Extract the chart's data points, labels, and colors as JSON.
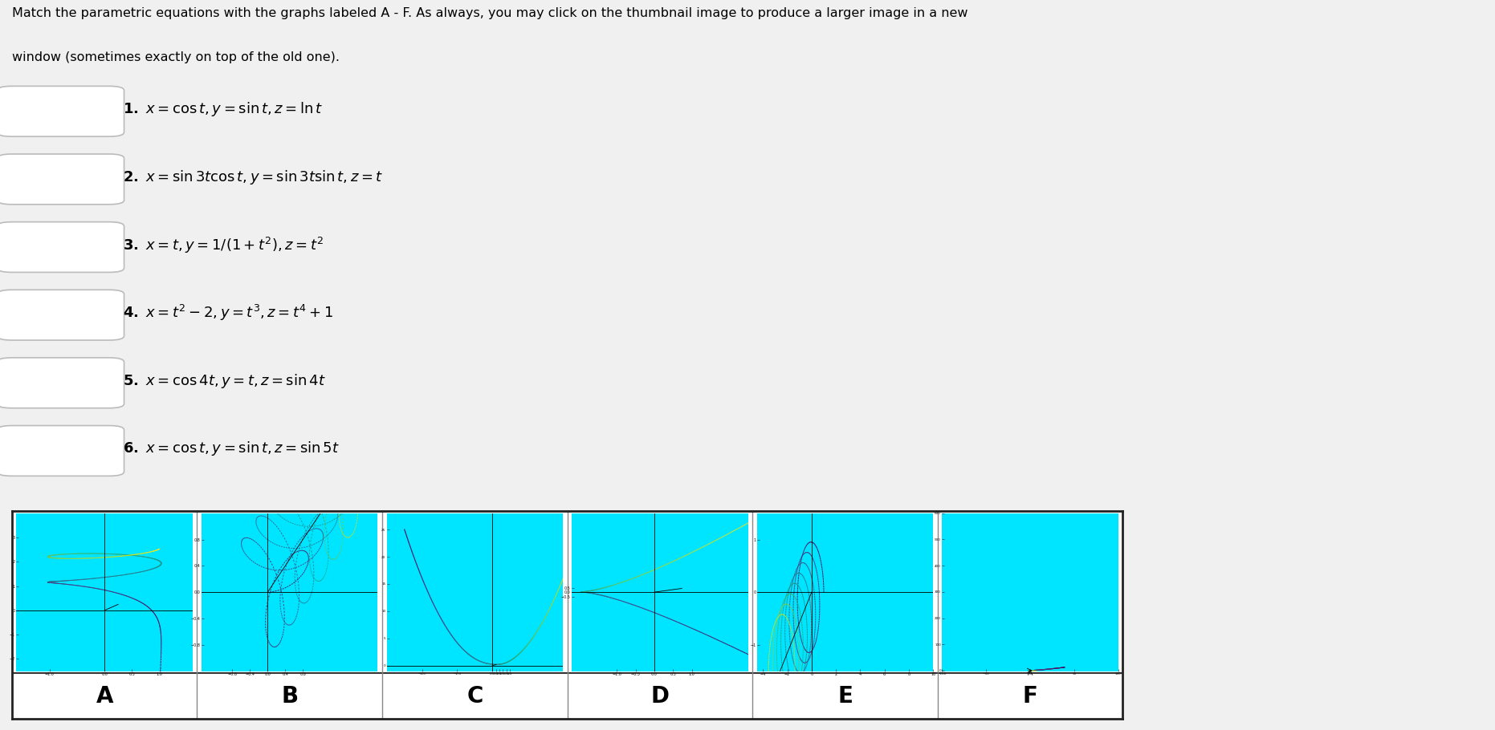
{
  "graph_labels": [
    "A",
    "B",
    "C",
    "D",
    "E",
    "F"
  ],
  "page_bg": "#f0f0f0",
  "panel_border_color": "#333333",
  "label_area_bg": "#f0f0f0",
  "cyan": "#00e5ff",
  "equations": [
    "\\mathbf{1.}\\ x = \\cos t,\\ y = \\sin t,\\ z = \\ln t",
    "\\mathbf{2.}\\ x = \\sin 3t\\cos t,\\ y = \\sin 3t\\sin t,\\ z = t",
    "\\mathbf{3.}\\ x = t,\\ y = 1/(1+t^2),\\ z = t^2",
    "\\mathbf{4.}\\ x = t^2-2,\\ y = t^3,\\ z = t^4+1",
    "\\mathbf{5.}\\ x = \\cos 4t,\\ y = t,\\ z = \\sin 4t",
    "\\mathbf{6.}\\ x = \\cos t,\\ y = \\sin t,\\ z = \\sin 5t"
  ]
}
